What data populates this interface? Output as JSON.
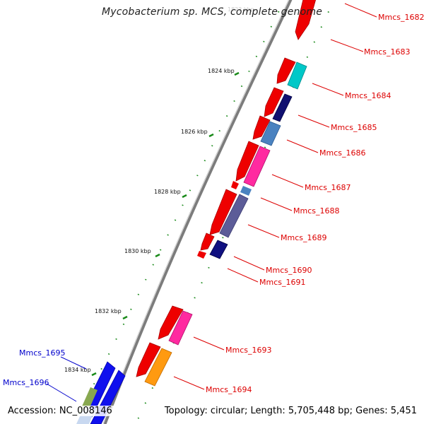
{
  "title": "Mycobacterium sp. MCS, complete genome",
  "accession": "Accession: NC_008146",
  "summary": "Topology: circular; Length: 5,705,448 bp; Genes: 5,451",
  "colors": {
    "backbone": "#8a8a8a",
    "tick": "#1a8a1a",
    "label_right": "#dd0000",
    "label_left": "#0000cc"
  },
  "scale_labels": [
    "1824 kbp",
    "1826 kbp",
    "1828 kbp",
    "1830 kbp",
    "1832 kbp",
    "1834 kbp"
  ],
  "gene_labels_right": [
    "Mmcs_1682",
    "Mmcs_1683",
    "Mmcs_1684",
    "Mmcs_1685",
    "Mmcs_1686",
    "Mmcs_1687",
    "Mmcs_1688",
    "Mmcs_1689",
    "Mmcs_1690",
    "Mmcs_1691",
    "Mmcs_1693",
    "Mmcs_1694"
  ],
  "gene_labels_left": [
    "Mmcs_1695",
    "Mmcs_1696"
  ]
}
